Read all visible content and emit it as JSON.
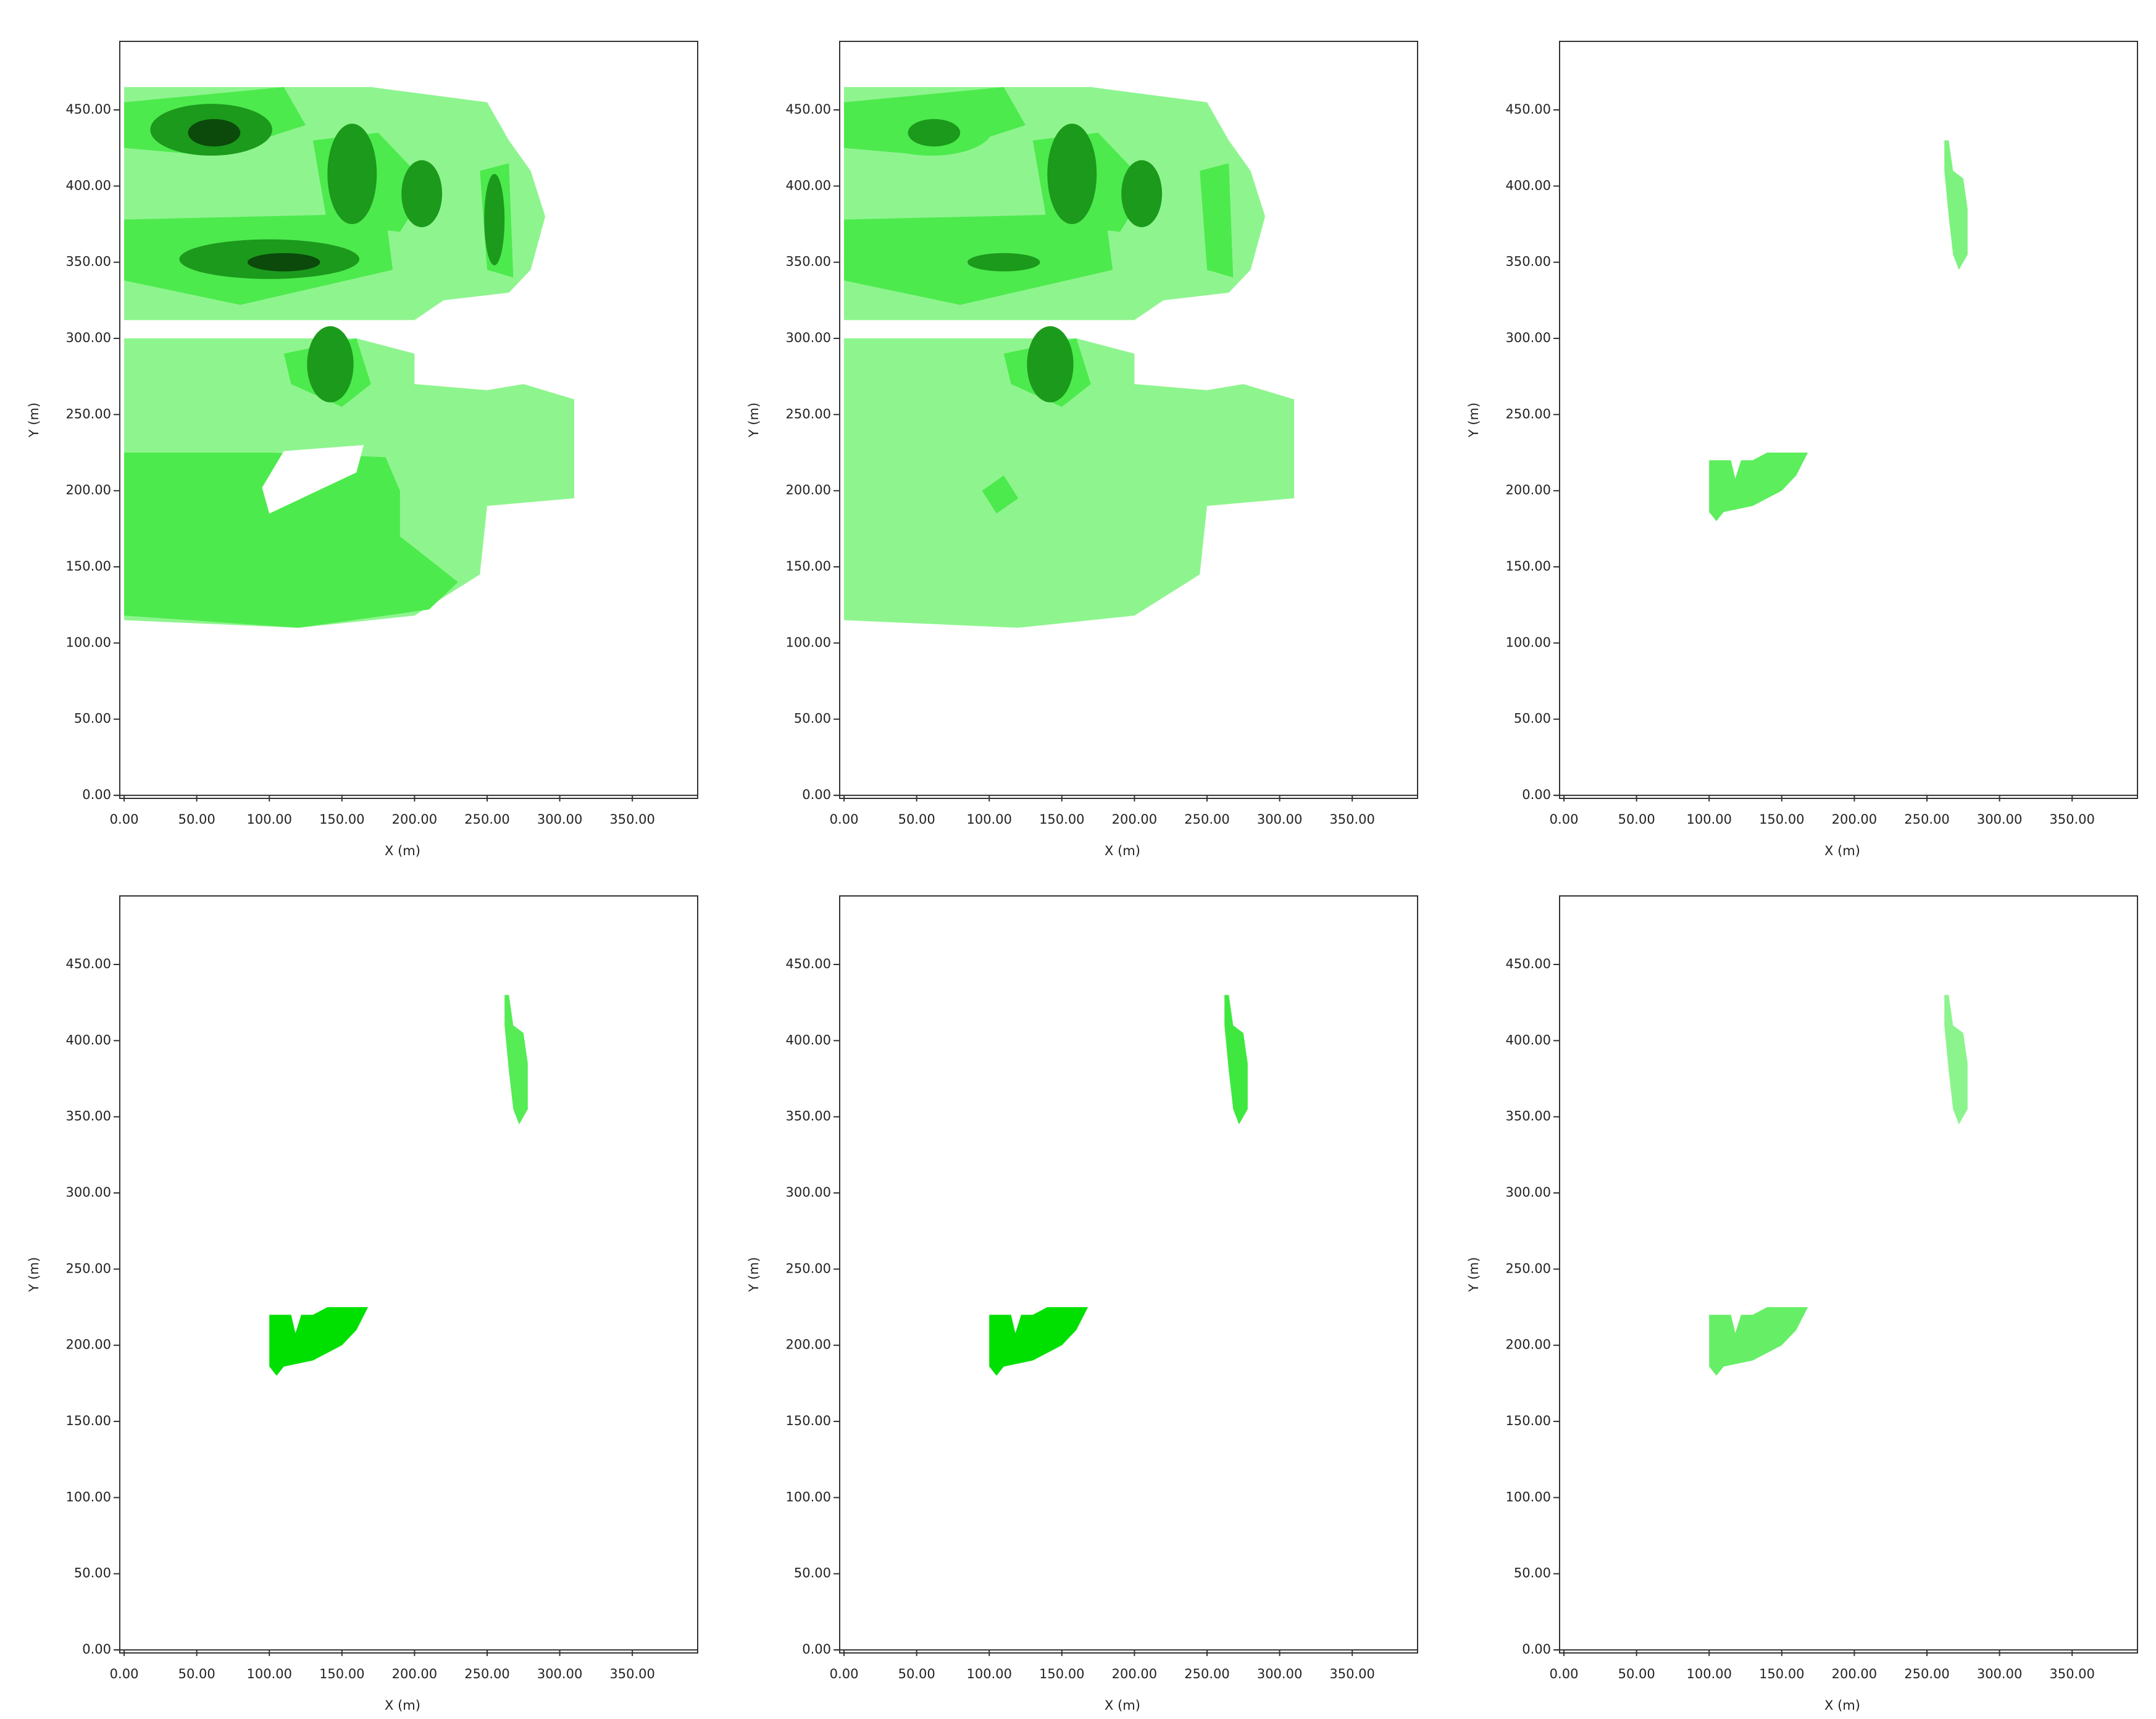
{
  "chart_data": [
    {
      "type": "heatmap",
      "xlabel": "X (m)",
      "ylabel": "Y (m)",
      "xlim": [
        -3,
        395
      ],
      "ylim": [
        -2,
        495
      ],
      "xticks": [
        {
          "value": 0,
          "label": "0.00"
        },
        {
          "value": 50,
          "label": "50.00"
        },
        {
          "value": 100,
          "label": "100.00"
        },
        {
          "value": 150,
          "label": "150.00"
        },
        {
          "value": 200,
          "label": "200.00"
        },
        {
          "value": 250,
          "label": "250.00"
        },
        {
          "value": 300,
          "label": "300.00"
        },
        {
          "value": 350,
          "label": "350.00"
        }
      ],
      "yticks": [
        {
          "value": 0,
          "label": "0.00"
        },
        {
          "value": 50,
          "label": "50.00"
        },
        {
          "value": 100,
          "label": "100.00"
        },
        {
          "value": 150,
          "label": "150.00"
        },
        {
          "value": 200,
          "label": "200.00"
        },
        {
          "value": 250,
          "label": "250.00"
        },
        {
          "value": 300,
          "label": "300.00"
        },
        {
          "value": 350,
          "label": "350.00"
        },
        {
          "value": 400,
          "label": "400.00"
        },
        {
          "value": 450,
          "label": "450.00"
        }
      ]
    },
    {
      "type": "heatmap",
      "xlabel": "X (m)",
      "ylabel": "Y (m)",
      "xlim": [
        -3,
        395
      ],
      "ylim": [
        -2,
        495
      ],
      "xticks": [
        {
          "value": 0,
          "label": "0.00"
        },
        {
          "value": 50,
          "label": "50.00"
        },
        {
          "value": 100,
          "label": "100.00"
        },
        {
          "value": 150,
          "label": "150.00"
        },
        {
          "value": 200,
          "label": "200.00"
        },
        {
          "value": 250,
          "label": "250.00"
        },
        {
          "value": 300,
          "label": "300.00"
        },
        {
          "value": 350,
          "label": "350.00"
        }
      ],
      "yticks": [
        {
          "value": 0,
          "label": "0.00"
        },
        {
          "value": 50,
          "label": "50.00"
        },
        {
          "value": 100,
          "label": "100.00"
        },
        {
          "value": 150,
          "label": "150.00"
        },
        {
          "value": 200,
          "label": "200.00"
        },
        {
          "value": 250,
          "label": "250.00"
        },
        {
          "value": 300,
          "label": "300.00"
        },
        {
          "value": 350,
          "label": "350.00"
        },
        {
          "value": 400,
          "label": "400.00"
        },
        {
          "value": 450,
          "label": "450.00"
        }
      ]
    },
    {
      "type": "heatmap",
      "xlabel": "X (m)",
      "ylabel": "Y (m)",
      "xlim": [
        -3,
        395
      ],
      "ylim": [
        -2,
        495
      ],
      "xticks": [
        {
          "value": 0,
          "label": "0.00"
        },
        {
          "value": 50,
          "label": "50.00"
        },
        {
          "value": 100,
          "label": "100.00"
        },
        {
          "value": 150,
          "label": "150.00"
        },
        {
          "value": 200,
          "label": "200.00"
        },
        {
          "value": 250,
          "label": "250.00"
        },
        {
          "value": 300,
          "label": "300.00"
        },
        {
          "value": 350,
          "label": "350.00"
        }
      ],
      "yticks": [
        {
          "value": 0,
          "label": "0.00"
        },
        {
          "value": 50,
          "label": "50.00"
        },
        {
          "value": 100,
          "label": "100.00"
        },
        {
          "value": 150,
          "label": "150.00"
        },
        {
          "value": 200,
          "label": "200.00"
        },
        {
          "value": 250,
          "label": "250.00"
        },
        {
          "value": 300,
          "label": "300.00"
        },
        {
          "value": 350,
          "label": "350.00"
        },
        {
          "value": 400,
          "label": "400.00"
        },
        {
          "value": 450,
          "label": "450.00"
        }
      ]
    },
    {
      "type": "heatmap",
      "xlabel": "X (m)",
      "ylabel": "Y (m)",
      "xlim": [
        -3,
        395
      ],
      "ylim": [
        -2,
        495
      ],
      "xticks": [
        {
          "value": 0,
          "label": "0.00"
        },
        {
          "value": 50,
          "label": "50.00"
        },
        {
          "value": 100,
          "label": "100.00"
        },
        {
          "value": 150,
          "label": "150.00"
        },
        {
          "value": 200,
          "label": "200.00"
        },
        {
          "value": 250,
          "label": "250.00"
        },
        {
          "value": 300,
          "label": "300.00"
        },
        {
          "value": 350,
          "label": "350.00"
        }
      ],
      "yticks": [
        {
          "value": 0,
          "label": "0.00"
        },
        {
          "value": 50,
          "label": "50.00"
        },
        {
          "value": 100,
          "label": "100.00"
        },
        {
          "value": 150,
          "label": "150.00"
        },
        {
          "value": 200,
          "label": "200.00"
        },
        {
          "value": 250,
          "label": "250.00"
        },
        {
          "value": 300,
          "label": "300.00"
        },
        {
          "value": 350,
          "label": "350.00"
        },
        {
          "value": 400,
          "label": "400.00"
        },
        {
          "value": 450,
          "label": "450.00"
        }
      ]
    },
    {
      "type": "heatmap",
      "xlabel": "X (m)",
      "ylabel": "Y (m)",
      "xlim": [
        -3,
        395
      ],
      "ylim": [
        -2,
        495
      ],
      "xticks": [
        {
          "value": 0,
          "label": "0.00"
        },
        {
          "value": 50,
          "label": "50.00"
        },
        {
          "value": 100,
          "label": "100.00"
        },
        {
          "value": 150,
          "label": "150.00"
        },
        {
          "value": 200,
          "label": "200.00"
        },
        {
          "value": 250,
          "label": "250.00"
        },
        {
          "value": 300,
          "label": "300.00"
        },
        {
          "value": 350,
          "label": "350.00"
        }
      ],
      "yticks": [
        {
          "value": 0,
          "label": "0.00"
        },
        {
          "value": 50,
          "label": "50.00"
        },
        {
          "value": 100,
          "label": "100.00"
        },
        {
          "value": 150,
          "label": "150.00"
        },
        {
          "value": 200,
          "label": "200.00"
        },
        {
          "value": 250,
          "label": "250.00"
        },
        {
          "value": 300,
          "label": "300.00"
        },
        {
          "value": 350,
          "label": "350.00"
        },
        {
          "value": 400,
          "label": "400.00"
        },
        {
          "value": 450,
          "label": "450.00"
        }
      ]
    },
    {
      "type": "heatmap",
      "xlabel": "X (m)",
      "ylabel": "Y (m)",
      "xlim": [
        -3,
        395
      ],
      "ylim": [
        -2,
        495
      ],
      "xticks": [
        {
          "value": 0,
          "label": "0.00"
        },
        {
          "value": 50,
          "label": "50.00"
        },
        {
          "value": 100,
          "label": "100.00"
        },
        {
          "value": 150,
          "label": "150.00"
        },
        {
          "value": 200,
          "label": "200.00"
        },
        {
          "value": 250,
          "label": "250.00"
        },
        {
          "value": 300,
          "label": "300.00"
        },
        {
          "value": 350,
          "label": "350.00"
        }
      ],
      "yticks": [
        {
          "value": 0,
          "label": "0.00"
        },
        {
          "value": 50,
          "label": "50.00"
        },
        {
          "value": 100,
          "label": "100.00"
        },
        {
          "value": 150,
          "label": "150.00"
        },
        {
          "value": 200,
          "label": "200.00"
        },
        {
          "value": 250,
          "label": "250.00"
        },
        {
          "value": 300,
          "label": "300.00"
        },
        {
          "value": 350,
          "label": "350.00"
        },
        {
          "value": 400,
          "label": "400.00"
        },
        {
          "value": 450,
          "label": "450.00"
        }
      ]
    }
  ]
}
